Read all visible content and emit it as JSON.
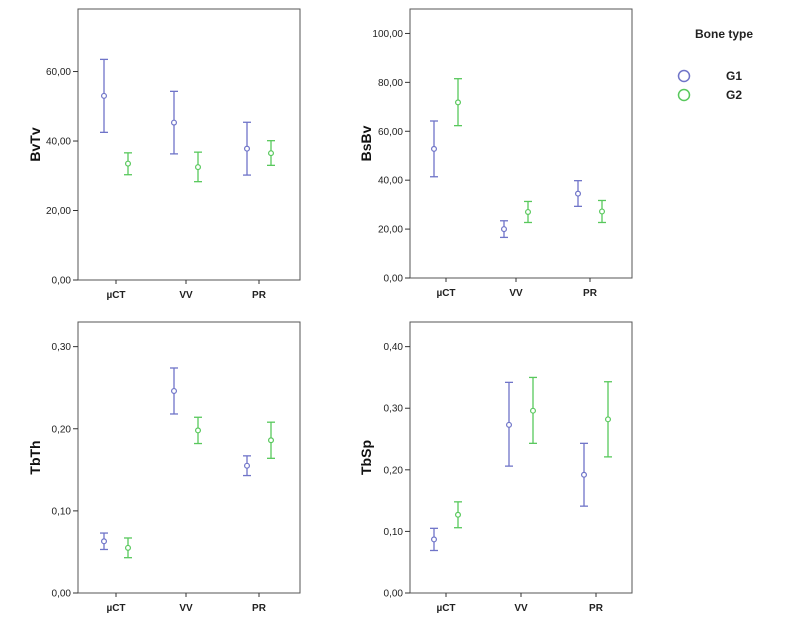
{
  "legend": {
    "title": "Bone type",
    "entries": [
      {
        "name": "G1",
        "color": "#6f74c8"
      },
      {
        "name": "G2",
        "color": "#58c85c"
      }
    ]
  },
  "chart_data": [
    {
      "type": "errorbar",
      "ylabel": "BvTv",
      "categories": [
        "µCT",
        "VV",
        "PR"
      ],
      "ylim": [
        0,
        78
      ],
      "yticks": [
        "0,00",
        "20,00",
        "40,00",
        "60,00"
      ],
      "series": [
        {
          "name": "G1",
          "mean": [
            53.0,
            45.3,
            37.8
          ],
          "low": [
            42.5,
            36.3,
            30.2
          ],
          "high": [
            63.5,
            54.3,
            45.4
          ]
        },
        {
          "name": "G2",
          "mean": [
            33.5,
            32.5,
            36.5
          ],
          "low": [
            30.3,
            28.3,
            33.0
          ],
          "high": [
            36.6,
            36.8,
            40.1
          ]
        }
      ]
    },
    {
      "type": "errorbar",
      "ylabel": "BsBv",
      "categories": [
        "µCT",
        "VV",
        "PR"
      ],
      "ylim": [
        0,
        110
      ],
      "yticks": [
        "0,00",
        "20,00",
        "40,00",
        "60,00",
        "80,00",
        "100,00"
      ],
      "series": [
        {
          "name": "G1",
          "mean": [
            52.8,
            20.0,
            34.5
          ],
          "low": [
            41.4,
            16.6,
            29.3
          ],
          "high": [
            64.2,
            23.4,
            39.8
          ]
        },
        {
          "name": "G2",
          "mean": [
            71.8,
            27.0,
            27.2
          ],
          "low": [
            62.3,
            22.7,
            22.7
          ],
          "high": [
            81.5,
            31.3,
            31.7
          ]
        }
      ]
    },
    {
      "type": "errorbar",
      "ylabel": "TbTh",
      "categories": [
        "µCT",
        "VV",
        "PR"
      ],
      "ylim": [
        0,
        0.33
      ],
      "yticks": [
        "0,00",
        "0,10",
        "0,20",
        "0,30"
      ],
      "series": [
        {
          "name": "G1",
          "mean": [
            0.063,
            0.246,
            0.155
          ],
          "low": [
            0.053,
            0.218,
            0.143
          ],
          "high": [
            0.073,
            0.274,
            0.167
          ]
        },
        {
          "name": "G2",
          "mean": [
            0.055,
            0.198,
            0.186
          ],
          "low": [
            0.043,
            0.182,
            0.164
          ],
          "high": [
            0.067,
            0.214,
            0.208
          ]
        }
      ]
    },
    {
      "type": "errorbar",
      "ylabel": "TbSp",
      "categories": [
        "µCT",
        "VV",
        "PR"
      ],
      "ylim": [
        0,
        0.44
      ],
      "yticks": [
        "0,00",
        "0,10",
        "0,20",
        "0,30",
        "0,40"
      ],
      "series": [
        {
          "name": "G1",
          "mean": [
            0.087,
            0.273,
            0.192
          ],
          "low": [
            0.069,
            0.206,
            0.141
          ],
          "high": [
            0.105,
            0.342,
            0.243
          ]
        },
        {
          "name": "G2",
          "mean": [
            0.127,
            0.296,
            0.282
          ],
          "low": [
            0.106,
            0.243,
            0.221
          ],
          "high": [
            0.148,
            0.35,
            0.343
          ]
        }
      ]
    }
  ]
}
